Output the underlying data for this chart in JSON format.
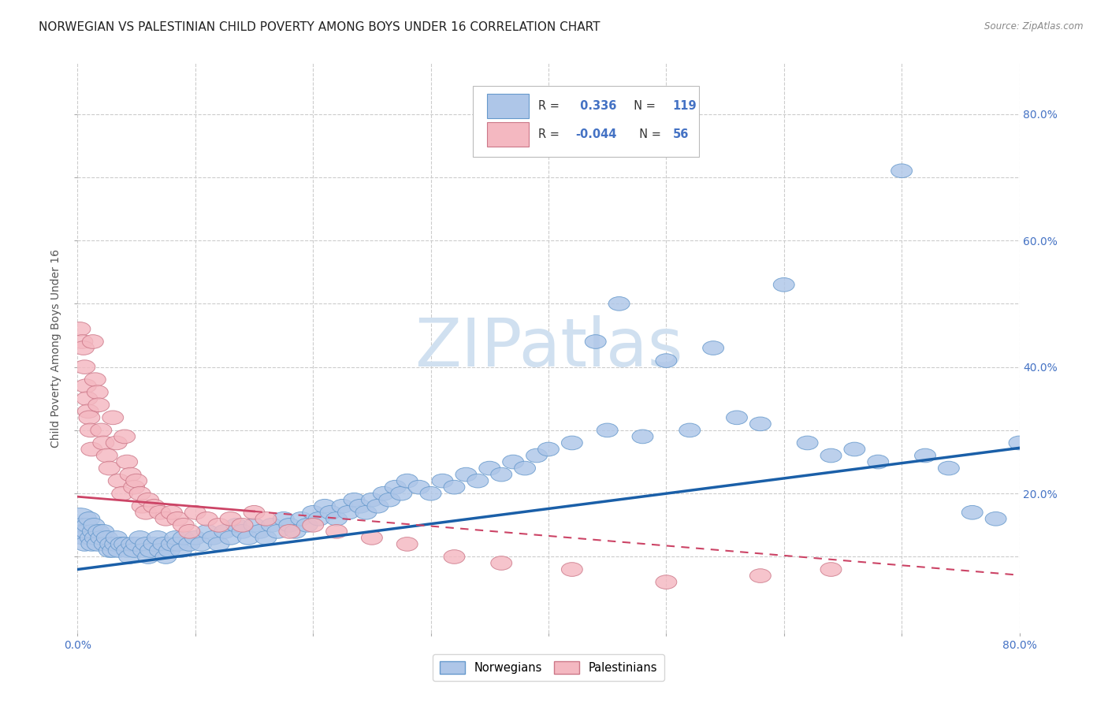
{
  "title": "NORWEGIAN VS PALESTINIAN CHILD POVERTY AMONG BOYS UNDER 16 CORRELATION CHART",
  "source": "Source: ZipAtlas.com",
  "ylabel": "Child Poverty Among Boys Under 16",
  "xlim": [
    0,
    0.8
  ],
  "ylim": [
    -0.02,
    0.88
  ],
  "norwegian_R": 0.336,
  "norwegian_N": 119,
  "palestinian_R": -0.044,
  "palestinian_N": 56,
  "norwegian_color": "#aec6e8",
  "norwegian_edge_color": "#6699cc",
  "norwegian_line_color": "#1a5fa8",
  "palestinian_color": "#f4b8c1",
  "palestinian_edge_color": "#cc7788",
  "palestinian_line_color": "#cc4466",
  "watermark_text": "ZIPatlas",
  "watermark_color": "#d0e0f0",
  "background_color": "#ffffff",
  "grid_color": "#cccccc",
  "title_fontsize": 11,
  "label_fontsize": 10,
  "tick_fontsize": 10,
  "tick_color": "#4472c4",
  "norwegian_x": [
    0.002,
    0.003,
    0.004,
    0.005,
    0.006,
    0.007,
    0.008,
    0.01,
    0.011,
    0.012,
    0.013,
    0.014,
    0.015,
    0.017,
    0.018,
    0.02,
    0.022,
    0.023,
    0.025,
    0.027,
    0.028,
    0.03,
    0.032,
    0.033,
    0.035,
    0.037,
    0.04,
    0.042,
    0.044,
    0.046,
    0.048,
    0.05,
    0.053,
    0.056,
    0.058,
    0.06,
    0.062,
    0.065,
    0.068,
    0.07,
    0.073,
    0.075,
    0.078,
    0.08,
    0.083,
    0.085,
    0.088,
    0.09,
    0.095,
    0.1,
    0.105,
    0.11,
    0.115,
    0.12,
    0.125,
    0.13,
    0.135,
    0.14,
    0.145,
    0.15,
    0.155,
    0.16,
    0.165,
    0.17,
    0.175,
    0.18,
    0.185,
    0.19,
    0.195,
    0.2,
    0.205,
    0.21,
    0.215,
    0.22,
    0.225,
    0.23,
    0.235,
    0.24,
    0.245,
    0.25,
    0.255,
    0.26,
    0.265,
    0.27,
    0.275,
    0.28,
    0.29,
    0.3,
    0.31,
    0.32,
    0.33,
    0.34,
    0.35,
    0.36,
    0.37,
    0.38,
    0.39,
    0.4,
    0.42,
    0.44,
    0.45,
    0.46,
    0.48,
    0.5,
    0.52,
    0.54,
    0.56,
    0.58,
    0.6,
    0.62,
    0.64,
    0.66,
    0.68,
    0.7,
    0.72,
    0.74,
    0.76,
    0.78,
    0.8
  ],
  "norwegian_y": [
    0.16,
    0.15,
    0.14,
    0.13,
    0.12,
    0.14,
    0.15,
    0.16,
    0.13,
    0.12,
    0.14,
    0.15,
    0.13,
    0.12,
    0.14,
    0.13,
    0.14,
    0.12,
    0.13,
    0.11,
    0.12,
    0.11,
    0.12,
    0.13,
    0.11,
    0.12,
    0.12,
    0.11,
    0.1,
    0.12,
    0.11,
    0.12,
    0.13,
    0.11,
    0.12,
    0.1,
    0.11,
    0.12,
    0.13,
    0.11,
    0.12,
    0.1,
    0.11,
    0.12,
    0.13,
    0.12,
    0.11,
    0.13,
    0.12,
    0.13,
    0.12,
    0.14,
    0.13,
    0.12,
    0.14,
    0.13,
    0.15,
    0.14,
    0.13,
    0.15,
    0.14,
    0.13,
    0.15,
    0.14,
    0.16,
    0.15,
    0.14,
    0.16,
    0.15,
    0.17,
    0.16,
    0.18,
    0.17,
    0.16,
    0.18,
    0.17,
    0.19,
    0.18,
    0.17,
    0.19,
    0.18,
    0.2,
    0.19,
    0.21,
    0.2,
    0.22,
    0.21,
    0.2,
    0.22,
    0.21,
    0.23,
    0.22,
    0.24,
    0.23,
    0.25,
    0.24,
    0.26,
    0.27,
    0.28,
    0.44,
    0.3,
    0.5,
    0.29,
    0.41,
    0.3,
    0.43,
    0.32,
    0.31,
    0.53,
    0.28,
    0.26,
    0.27,
    0.25,
    0.71,
    0.26,
    0.24,
    0.17,
    0.16,
    0.28
  ],
  "norwegian_sizes": [
    200,
    80,
    80,
    80,
    80,
    80,
    80,
    80,
    80,
    80,
    80,
    80,
    80,
    80,
    80,
    80,
    80,
    80,
    80,
    80,
    80,
    80,
    80,
    80,
    80,
    80,
    80,
    80,
    80,
    80,
    80,
    80,
    80,
    80,
    80,
    80,
    80,
    80,
    80,
    80,
    80,
    80,
    80,
    80,
    80,
    80,
    80,
    80,
    80,
    80,
    80,
    80,
    80,
    80,
    80,
    80,
    80,
    80,
    80,
    80,
    80,
    80,
    80,
    80,
    80,
    80,
    80,
    80,
    80,
    80,
    80,
    80,
    80,
    80,
    80,
    80,
    80,
    80,
    80,
    80,
    80,
    80,
    80,
    80,
    80,
    80,
    80,
    80,
    80,
    80,
    80,
    80,
    80,
    80,
    80,
    80,
    80,
    80,
    80,
    80,
    80,
    80,
    80,
    80,
    80,
    80,
    80,
    80,
    80,
    80,
    80,
    80,
    80,
    80,
    80,
    80,
    80,
    80,
    80
  ],
  "palestinian_x": [
    0.002,
    0.004,
    0.005,
    0.006,
    0.007,
    0.008,
    0.009,
    0.01,
    0.011,
    0.012,
    0.013,
    0.015,
    0.017,
    0.018,
    0.02,
    0.022,
    0.025,
    0.027,
    0.03,
    0.033,
    0.035,
    0.038,
    0.04,
    0.042,
    0.045,
    0.048,
    0.05,
    0.053,
    0.055,
    0.058,
    0.06,
    0.065,
    0.07,
    0.075,
    0.08,
    0.085,
    0.09,
    0.095,
    0.1,
    0.11,
    0.12,
    0.13,
    0.14,
    0.15,
    0.16,
    0.18,
    0.2,
    0.22,
    0.25,
    0.28,
    0.32,
    0.36,
    0.42,
    0.5,
    0.58,
    0.64
  ],
  "palestinian_y": [
    0.46,
    0.44,
    0.43,
    0.4,
    0.37,
    0.35,
    0.33,
    0.32,
    0.3,
    0.27,
    0.44,
    0.38,
    0.36,
    0.34,
    0.3,
    0.28,
    0.26,
    0.24,
    0.32,
    0.28,
    0.22,
    0.2,
    0.29,
    0.25,
    0.23,
    0.21,
    0.22,
    0.2,
    0.18,
    0.17,
    0.19,
    0.18,
    0.17,
    0.16,
    0.17,
    0.16,
    0.15,
    0.14,
    0.17,
    0.16,
    0.15,
    0.16,
    0.15,
    0.17,
    0.16,
    0.14,
    0.15,
    0.14,
    0.13,
    0.12,
    0.1,
    0.09,
    0.08,
    0.06,
    0.07,
    0.08
  ],
  "norwegian_intercept": 0.08,
  "norwegian_slope": 0.24,
  "palestinian_intercept": 0.195,
  "palestinian_slope": -0.155
}
